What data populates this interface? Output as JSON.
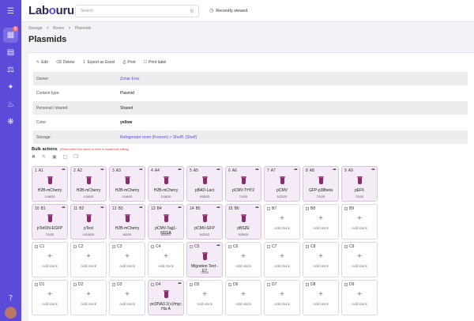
{
  "app": {
    "logo_prefix": "Lab",
    "logo_o": "o",
    "logo_suffix": "uru",
    "search_placeholder": "Search",
    "recently_viewed": "Recently viewed",
    "notification_count": "9"
  },
  "breadcrumb": [
    "Storage",
    ">",
    "Boxes",
    ">",
    "Plasmids"
  ],
  "page_title": "Plasmids",
  "toolbar": {
    "edit": "Edit",
    "delete": "Delete",
    "export": "Export as Excel",
    "print": "Print",
    "print_label": "Print label"
  },
  "details": [
    {
      "label": "Owner:",
      "value": "Zohar Erez",
      "style": "link"
    },
    {
      "label": "Content type:",
      "value": "Plasmid",
      "style": ""
    },
    {
      "label": "Personal / shared:",
      "value": "Shared",
      "style": ""
    },
    {
      "label": "Color:",
      "value": "yellow",
      "style": "bold"
    },
    {
      "label": "Storage:",
      "value": "Refrigerator room (Freezer) > Shelf1 (Shelf)",
      "style": "link"
    }
  ],
  "bulk": {
    "title": "Bulk actions",
    "hint": "(Please select two stocks or more to enable bulk editing)"
  },
  "add_stock_label": "Add stock",
  "rows": [
    [
      {
        "n": "1",
        "pos": "A1",
        "name": "H2B-mCherry",
        "date": "1/18/20"
      },
      {
        "n": "2",
        "pos": "A2",
        "name": "H2B-mCherry",
        "date": "1/18/20"
      },
      {
        "n": "3",
        "pos": "A3",
        "name": "H2B-mCherry",
        "date": "1/18/20"
      },
      {
        "n": "4",
        "pos": "A4",
        "name": "H2B-mCherry",
        "date": "1/18/20"
      },
      {
        "n": "5",
        "pos": "A5",
        "name": "pBAD-Lact",
        "date": "4/30/20"
      },
      {
        "n": "6",
        "pos": "A6",
        "name": "pCMV-THY2",
        "date": "7/1/20"
      },
      {
        "n": "7",
        "pos": "A7",
        "name": "pCMV",
        "date": "5/22/22"
      },
      {
        "n": "8",
        "pos": "A8",
        "name": "GFP-p38beta",
        "date": "7/1/20"
      },
      {
        "n": "9",
        "pos": "A9",
        "name": "pEF6",
        "date": "7/1/20"
      }
    ],
    [
      {
        "n": "10",
        "pos": "B1",
        "name": "pTetON-EGFP",
        "date": "7/1/20"
      },
      {
        "n": "11",
        "pos": "B2",
        "name": "pText",
        "date": "10/15/20"
      },
      {
        "n": "12",
        "pos": "B3",
        "name": "H2B-mCherry",
        "date": "6/2/20"
      },
      {
        "n": "13",
        "pos": "B4",
        "name": "pCMV-Tag1-NSSA",
        "date": "5/20/22"
      },
      {
        "n": "14",
        "pos": "B5",
        "name": "pCMV-GFP",
        "date": "5/22/22"
      },
      {
        "n": "15",
        "pos": "B6",
        "name": "pBS2E",
        "date": "9/29/20"
      },
      {
        "n": "",
        "pos": "B7",
        "name": "",
        "date": ""
      },
      {
        "n": "",
        "pos": "B8",
        "name": "",
        "date": ""
      },
      {
        "n": "",
        "pos": "B9",
        "name": "",
        "date": ""
      }
    ],
    [
      {
        "n": "",
        "pos": "C1",
        "name": "",
        "date": ""
      },
      {
        "n": "",
        "pos": "C2",
        "name": "",
        "date": ""
      },
      {
        "n": "",
        "pos": "C3",
        "name": "",
        "date": ""
      },
      {
        "n": "",
        "pos": "C4",
        "name": "",
        "date": ""
      },
      {
        "n": "",
        "pos": "C5",
        "name": "Migration Test - E7",
        "date": "7/1/20"
      },
      {
        "n": "",
        "pos": "C6",
        "name": "",
        "date": ""
      },
      {
        "n": "",
        "pos": "C7",
        "name": "",
        "date": ""
      },
      {
        "n": "",
        "pos": "C8",
        "name": "",
        "date": ""
      },
      {
        "n": "",
        "pos": "C9",
        "name": "",
        "date": ""
      }
    ],
    [
      {
        "n": "",
        "pos": "D1",
        "name": "",
        "date": ""
      },
      {
        "n": "",
        "pos": "D2",
        "name": "",
        "date": ""
      },
      {
        "n": "",
        "pos": "D3",
        "name": "",
        "date": ""
      },
      {
        "n": "",
        "pos": "D4",
        "name": "pcDNA3.1(+)/myc His A",
        "date": ""
      },
      {
        "n": "",
        "pos": "D5",
        "name": "",
        "date": ""
      },
      {
        "n": "",
        "pos": "D6",
        "name": "",
        "date": ""
      },
      {
        "n": "",
        "pos": "D7",
        "name": "",
        "date": ""
      },
      {
        "n": "",
        "pos": "D8",
        "name": "",
        "date": ""
      },
      {
        "n": "",
        "pos": "D9",
        "name": "",
        "date": ""
      }
    ]
  ],
  "icons": {
    "menu": "hamburger-icon",
    "search": "search-icon",
    "recent": "clock-icon"
  }
}
